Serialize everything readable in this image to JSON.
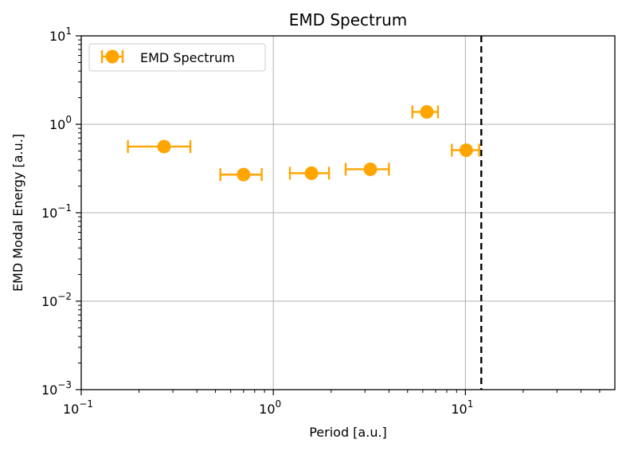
{
  "chart_data": {
    "type": "scatter",
    "title": "EMD Spectrum",
    "xlabel": "Period [a.u.]",
    "ylabel": "EMD Modal Energy [a.u.]",
    "xscale": "log",
    "yscale": "log",
    "xlim": [
      0.1,
      60
    ],
    "ylim": [
      0.001,
      10
    ],
    "x_ticks": [
      {
        "value": 0.1,
        "base": "10",
        "exp": "−1"
      },
      {
        "value": 1,
        "base": "10",
        "exp": "0"
      },
      {
        "value": 10,
        "base": "10",
        "exp": "1"
      }
    ],
    "y_ticks": [
      {
        "value": 0.001,
        "base": "10",
        "exp": "−3"
      },
      {
        "value": 0.01,
        "base": "10",
        "exp": "−2"
      },
      {
        "value": 0.1,
        "base": "10",
        "exp": "−1"
      },
      {
        "value": 1,
        "base": "10",
        "exp": "0"
      },
      {
        "value": 10,
        "base": "10",
        "exp": "1"
      }
    ],
    "grid": true,
    "legend_position": "top-left",
    "series": [
      {
        "name": "EMD Spectrum",
        "color": "#FFA500",
        "marker": "circle",
        "points": [
          {
            "x": 0.27,
            "y": 0.56,
            "xerr_low": 0.175,
            "xerr_high": 0.37
          },
          {
            "x": 0.7,
            "y": 0.27,
            "xerr_low": 0.53,
            "xerr_high": 0.87
          },
          {
            "x": 1.58,
            "y": 0.28,
            "xerr_low": 1.22,
            "xerr_high": 1.95
          },
          {
            "x": 3.2,
            "y": 0.31,
            "xerr_low": 2.38,
            "xerr_high": 4.0
          },
          {
            "x": 6.3,
            "y": 1.38,
            "xerr_low": 5.3,
            "xerr_high": 7.2
          },
          {
            "x": 10.1,
            "y": 0.51,
            "xerr_low": 8.5,
            "xerr_high": 11.8
          }
        ]
      }
    ],
    "reference_line": {
      "x": 12.1,
      "style": "dashed",
      "color": "#000000"
    }
  }
}
